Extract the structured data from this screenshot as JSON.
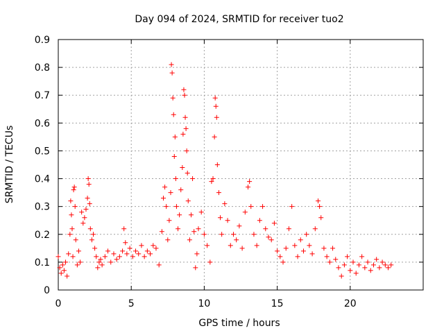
{
  "chart_data": {
    "type": "scatter",
    "title": "Day 094 of 2024, SRMTID for receiver tuo2",
    "xlabel": "GPS time / hours",
    "ylabel": "SRMTID / TECUs",
    "xlim": [
      0,
      25
    ],
    "ylim": [
      0,
      0.9
    ],
    "xticks": [
      0,
      5,
      10,
      15,
      20
    ],
    "xtick_labels": [
      "0",
      "5",
      "10",
      "15",
      "20"
    ],
    "yticks": [
      0,
      0.1,
      0.2,
      0.3,
      0.4,
      0.5,
      0.6,
      0.7,
      0.8,
      0.9
    ],
    "ytick_labels": [
      "0",
      "0.1",
      "0.2",
      "0.3",
      "0.4",
      "0.5",
      "0.6",
      "0.7",
      "0.8",
      "0.9"
    ],
    "grid": true,
    "marker": "+",
    "color": "#ff0000",
    "series": [
      {
        "name": "SRMTID",
        "points": [
          [
            0.0,
            0.12
          ],
          [
            0.1,
            0.08
          ],
          [
            0.2,
            0.06
          ],
          [
            0.3,
            0.09
          ],
          [
            0.4,
            0.07
          ],
          [
            0.5,
            0.1
          ],
          [
            0.6,
            0.05
          ],
          [
            0.7,
            0.13
          ],
          [
            0.8,
            0.2
          ],
          [
            0.85,
            0.32
          ],
          [
            0.9,
            0.27
          ],
          [
            0.95,
            0.22
          ],
          [
            1.0,
            0.12
          ],
          [
            1.05,
            0.36
          ],
          [
            1.1,
            0.37
          ],
          [
            1.15,
            0.3
          ],
          [
            1.2,
            0.18
          ],
          [
            1.3,
            0.09
          ],
          [
            1.4,
            0.14
          ],
          [
            1.5,
            0.1
          ],
          [
            1.6,
            0.28
          ],
          [
            1.7,
            0.24
          ],
          [
            1.8,
            0.26
          ],
          [
            1.9,
            0.29
          ],
          [
            2.0,
            0.33
          ],
          [
            2.05,
            0.4
          ],
          [
            2.1,
            0.38
          ],
          [
            2.15,
            0.31
          ],
          [
            2.2,
            0.22
          ],
          [
            2.3,
            0.18
          ],
          [
            2.4,
            0.2
          ],
          [
            2.5,
            0.15
          ],
          [
            2.6,
            0.12
          ],
          [
            2.7,
            0.08
          ],
          [
            2.8,
            0.1
          ],
          [
            2.9,
            0.11
          ],
          [
            3.0,
            0.09
          ],
          [
            3.2,
            0.12
          ],
          [
            3.4,
            0.14
          ],
          [
            3.6,
            0.1
          ],
          [
            3.8,
            0.13
          ],
          [
            4.0,
            0.11
          ],
          [
            4.2,
            0.12
          ],
          [
            4.4,
            0.14
          ],
          [
            4.5,
            0.22
          ],
          [
            4.6,
            0.17
          ],
          [
            4.7,
            0.13
          ],
          [
            4.9,
            0.15
          ],
          [
            5.1,
            0.12
          ],
          [
            5.3,
            0.14
          ],
          [
            5.5,
            0.13
          ],
          [
            5.7,
            0.16
          ],
          [
            5.9,
            0.12
          ],
          [
            6.1,
            0.14
          ],
          [
            6.3,
            0.13
          ],
          [
            6.5,
            0.16
          ],
          [
            6.7,
            0.15
          ],
          [
            6.9,
            0.09
          ],
          [
            7.1,
            0.21
          ],
          [
            7.2,
            0.33
          ],
          [
            7.3,
            0.37
          ],
          [
            7.4,
            0.3
          ],
          [
            7.5,
            0.18
          ],
          [
            7.6,
            0.25
          ],
          [
            7.7,
            0.35
          ],
          [
            7.75,
            0.81
          ],
          [
            7.8,
            0.78
          ],
          [
            7.85,
            0.69
          ],
          [
            7.9,
            0.63
          ],
          [
            7.95,
            0.48
          ],
          [
            8.0,
            0.55
          ],
          [
            8.05,
            0.4
          ],
          [
            8.1,
            0.3
          ],
          [
            8.2,
            0.22
          ],
          [
            8.3,
            0.27
          ],
          [
            8.4,
            0.36
          ],
          [
            8.5,
            0.44
          ],
          [
            8.55,
            0.56
          ],
          [
            8.6,
            0.72
          ],
          [
            8.65,
            0.7
          ],
          [
            8.7,
            0.62
          ],
          [
            8.75,
            0.58
          ],
          [
            8.8,
            0.5
          ],
          [
            8.85,
            0.42
          ],
          [
            8.9,
            0.32
          ],
          [
            9.0,
            0.18
          ],
          [
            9.1,
            0.27
          ],
          [
            9.2,
            0.4
          ],
          [
            9.3,
            0.21
          ],
          [
            9.4,
            0.08
          ],
          [
            9.5,
            0.13
          ],
          [
            9.6,
            0.22
          ],
          [
            9.8,
            0.28
          ],
          [
            10.0,
            0.2
          ],
          [
            10.2,
            0.16
          ],
          [
            10.4,
            0.1
          ],
          [
            10.5,
            0.39
          ],
          [
            10.6,
            0.4
          ],
          [
            10.7,
            0.55
          ],
          [
            10.75,
            0.69
          ],
          [
            10.8,
            0.66
          ],
          [
            10.85,
            0.62
          ],
          [
            10.9,
            0.45
          ],
          [
            11.0,
            0.35
          ],
          [
            11.1,
            0.26
          ],
          [
            11.2,
            0.2
          ],
          [
            11.4,
            0.31
          ],
          [
            11.6,
            0.25
          ],
          [
            11.8,
            0.16
          ],
          [
            12.0,
            0.2
          ],
          [
            12.2,
            0.18
          ],
          [
            12.4,
            0.23
          ],
          [
            12.6,
            0.15
          ],
          [
            12.8,
            0.28
          ],
          [
            13.0,
            0.37
          ],
          [
            13.1,
            0.39
          ],
          [
            13.2,
            0.3
          ],
          [
            13.4,
            0.2
          ],
          [
            13.6,
            0.16
          ],
          [
            13.8,
            0.25
          ],
          [
            14.0,
            0.3
          ],
          [
            14.2,
            0.22
          ],
          [
            14.4,
            0.19
          ],
          [
            14.6,
            0.18
          ],
          [
            14.8,
            0.24
          ],
          [
            15.0,
            0.14
          ],
          [
            15.2,
            0.12
          ],
          [
            15.4,
            0.1
          ],
          [
            15.6,
            0.15
          ],
          [
            15.8,
            0.22
          ],
          [
            16.0,
            0.3
          ],
          [
            16.2,
            0.16
          ],
          [
            16.4,
            0.12
          ],
          [
            16.6,
            0.18
          ],
          [
            16.8,
            0.14
          ],
          [
            17.0,
            0.2
          ],
          [
            17.2,
            0.16
          ],
          [
            17.4,
            0.13
          ],
          [
            17.6,
            0.22
          ],
          [
            17.8,
            0.32
          ],
          [
            17.9,
            0.3
          ],
          [
            18.0,
            0.26
          ],
          [
            18.2,
            0.15
          ],
          [
            18.4,
            0.12
          ],
          [
            18.6,
            0.1
          ],
          [
            18.8,
            0.15
          ],
          [
            19.0,
            0.11
          ],
          [
            19.2,
            0.08
          ],
          [
            19.4,
            0.05
          ],
          [
            19.6,
            0.09
          ],
          [
            19.8,
            0.12
          ],
          [
            20.0,
            0.07
          ],
          [
            20.2,
            0.1
          ],
          [
            20.4,
            0.06
          ],
          [
            20.6,
            0.09
          ],
          [
            20.8,
            0.12
          ],
          [
            21.0,
            0.08
          ],
          [
            21.2,
            0.1
          ],
          [
            21.4,
            0.07
          ],
          [
            21.6,
            0.09
          ],
          [
            21.8,
            0.11
          ],
          [
            22.0,
            0.08
          ],
          [
            22.2,
            0.1
          ],
          [
            22.4,
            0.09
          ],
          [
            22.6,
            0.08
          ],
          [
            22.8,
            0.09
          ]
        ]
      }
    ]
  }
}
